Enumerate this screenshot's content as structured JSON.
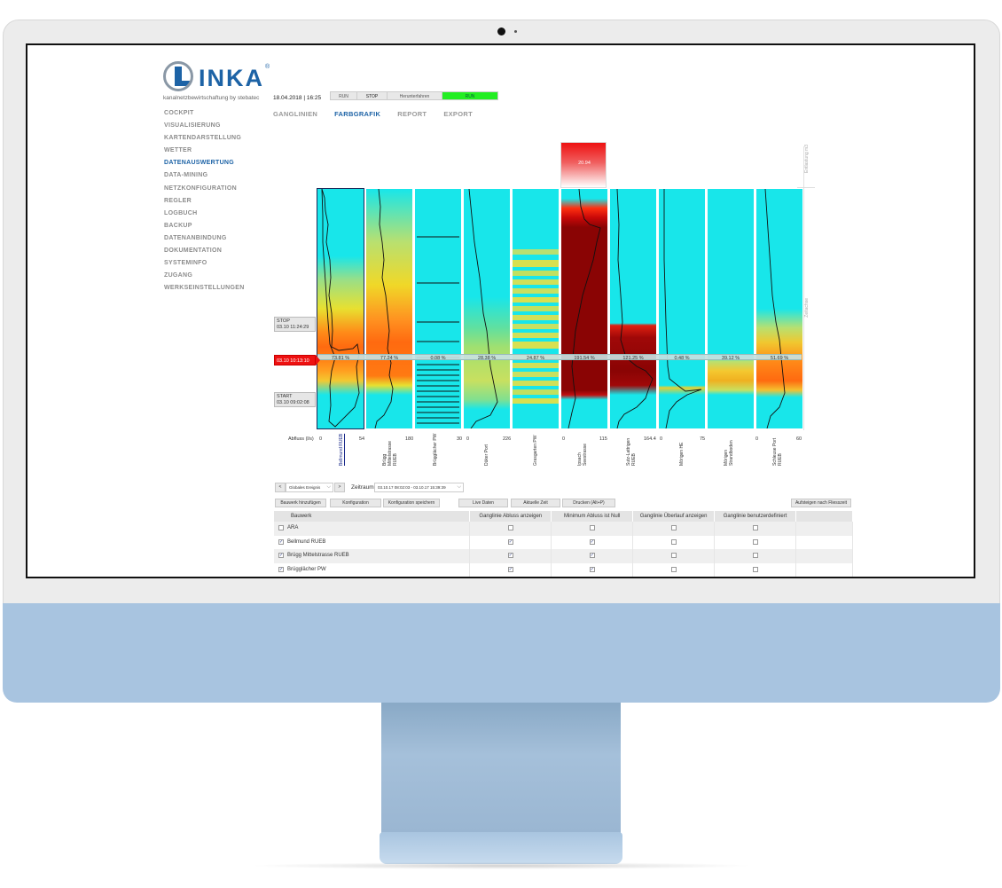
{
  "brand": {
    "name": "INKA",
    "reg": "®",
    "subtitle": "kanalnetzbewirtschaftung by stebatec"
  },
  "timestamp": "18.04.2018 | 16:25",
  "status_buttons": [
    "RUN",
    "STOP",
    "Herunterfahren",
    "RUN"
  ],
  "sidebar": {
    "items": [
      {
        "label": "COCKPIT"
      },
      {
        "label": "VISUALISIERUNG"
      },
      {
        "label": "KARTENDARSTELLUNG"
      },
      {
        "label": "WETTER"
      },
      {
        "label": "DATENAUSWERTUNG",
        "active": true
      },
      {
        "label": "DATA-MINING"
      },
      {
        "label": "NETZKONFIGURATION"
      },
      {
        "label": "REGLER"
      },
      {
        "label": "LOGBUCH"
      },
      {
        "label": "BACKUP"
      },
      {
        "label": "DATENANBINDUNG"
      },
      {
        "label": "DOKUMENTATION"
      },
      {
        "label": "SYSTEMINFO"
      },
      {
        "label": "ZUGANG"
      },
      {
        "label": "WERKSEINSTELLUNGEN"
      }
    ]
  },
  "tabs": [
    {
      "label": "GANGLINIEN"
    },
    {
      "label": "FARBGRAFIK",
      "active": true
    },
    {
      "label": "REPORT"
    },
    {
      "label": "EXPORT"
    }
  ],
  "chart": {
    "side_axis_top": "Entlastung m3",
    "side_axis_mid": "Zeitachse",
    "overflow_value": "20.94",
    "markers": {
      "stop_label": "STOP",
      "stop_time": "03.10 11:24:29",
      "current": "03.10 10:13:10",
      "start_label": "START",
      "start_time": "03.10 09:02:08"
    },
    "axis_title": "Abfluss (l/s)",
    "columns": [
      {
        "name": "Bellmund RUEB",
        "pct": "73.81 %",
        "min": "0",
        "max": "54",
        "selected": true
      },
      {
        "name": "Brügg Mittelstrasse RUEB",
        "pct": "77.24 %",
        "min": "",
        "max": "180"
      },
      {
        "name": "Brügglächer PW",
        "pct": "0.08 %",
        "min": "",
        "max": "30"
      },
      {
        "name": "Düker Port",
        "pct": "28.38 %",
        "min": "0",
        "max": "226"
      },
      {
        "name": "Grasgarten PW",
        "pct": "24.87 %",
        "min": "",
        "max": ""
      },
      {
        "name": "Ipsach Seestrasse",
        "pct": "191.54 %",
        "min": "0",
        "max": "115"
      },
      {
        "name": "Sutz-Lattrigen RUEB",
        "pct": "121.25 %",
        "min": "",
        "max": "164.4"
      },
      {
        "name": "Mörigen HE",
        "pct": "0.48 %",
        "min": "0",
        "max": "75"
      },
      {
        "name": "Mörigen Strandboden",
        "pct": "39.12 %",
        "min": "",
        "max": ""
      },
      {
        "name": "Schleuse Port RUEB",
        "pct": "51.69 %",
        "min": "0",
        "max": "60"
      }
    ]
  },
  "controls": {
    "prev": "<",
    "ereignis": "Globales Ereignis",
    "next": ">",
    "zeitraum_label": "Zeitraum",
    "zeitraum_value": "03.10.17 08:02:03 - 03.10.17 15:39:39",
    "buttons": [
      "Bauwerk hinzufügen",
      "Konfiguration",
      "Konfiguration speichern",
      "Live Daten",
      "Aktuelle Zeit",
      "Drucken (Alt+P)",
      "Aufsteigen nach Fliesszeit"
    ]
  },
  "table": {
    "headers": [
      "Bauwerk",
      "Ganglinie Abluss anzeigen",
      "Minimum Abluss ist Null",
      "Ganglinie Überlauf anzeigen",
      "Ganglinie benutzerdefiniert"
    ],
    "rows": [
      {
        "name": "ARA",
        "checked": false,
        "c1": false,
        "c2": false,
        "c3": false,
        "c4": false
      },
      {
        "name": "Bellmund RUEB",
        "checked": true,
        "c1": true,
        "c2": true,
        "c3": false,
        "c4": false
      },
      {
        "name": "Brügg Mittelstrasse RUEB",
        "checked": true,
        "c1": true,
        "c2": true,
        "c3": false,
        "c4": false
      },
      {
        "name": "Brügglächer PW",
        "checked": true,
        "c1": true,
        "c2": true,
        "c3": false,
        "c4": false
      }
    ]
  }
}
